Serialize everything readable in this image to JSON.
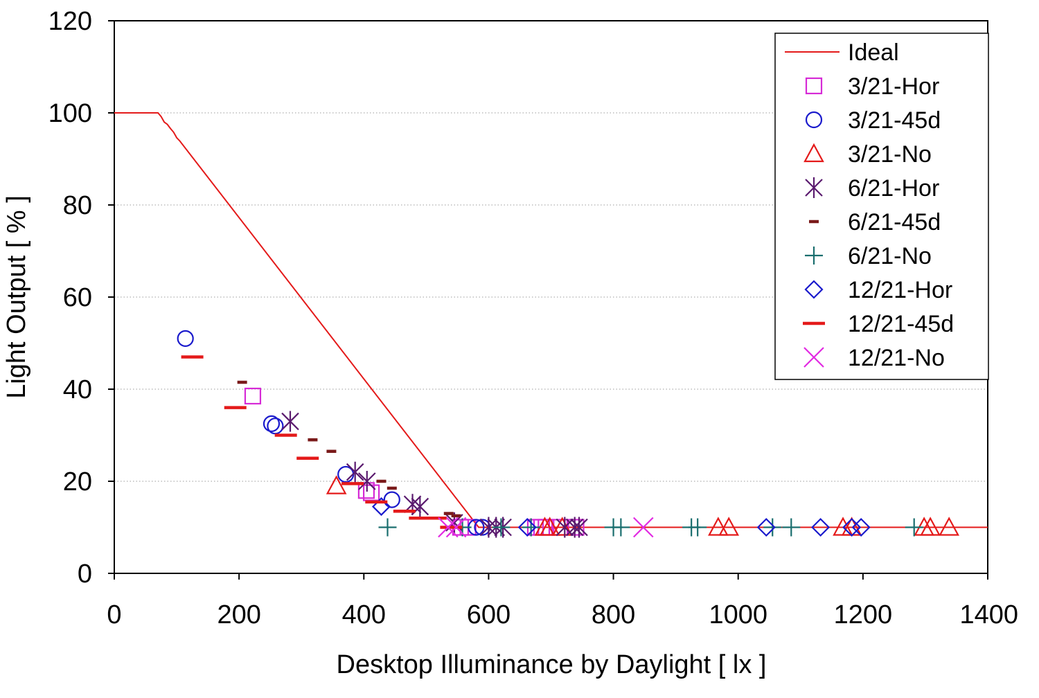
{
  "chart_data": {
    "type": "scatter",
    "title": "",
    "xlabel": "Desktop Illuminance by Daylight [ lx ]",
    "ylabel": "Light Output [ % ]",
    "xlim": [
      0,
      1400
    ],
    "ylim": [
      0,
      120
    ],
    "xticks": [
      "0",
      "200",
      "400",
      "600",
      "800",
      "1000",
      "1200",
      "1400"
    ],
    "yticks": [
      "0",
      "20",
      "40",
      "60",
      "80",
      "100",
      "120"
    ],
    "grid": "horizontal-dotted",
    "legend_position": "top-right",
    "series": [
      {
        "name": "Ideal",
        "marker": "line",
        "color": "#e41a1a",
        "points": [
          [
            0,
            100
          ],
          [
            70,
            100
          ],
          [
            75,
            99.2
          ],
          [
            80,
            98
          ],
          [
            85,
            97.5
          ],
          [
            90,
            96.6
          ],
          [
            95,
            95.8
          ],
          [
            100,
            94.6
          ],
          [
            105,
            93.9
          ],
          [
            584,
            10
          ],
          [
            1400,
            10
          ]
        ]
      },
      {
        "name": "3/21-Hor",
        "marker": "square",
        "color": "#d62ad6",
        "points": [
          [
            222,
            38.5
          ],
          [
            404,
            18
          ],
          [
            412,
            17.5
          ],
          [
            555,
            10
          ],
          [
            567,
            10
          ],
          [
            675,
            10
          ],
          [
            685,
            10
          ],
          [
            692,
            10
          ],
          [
            714,
            10
          ],
          [
            740,
            10
          ]
        ]
      },
      {
        "name": "3/21-45d",
        "marker": "circle",
        "color": "#1a1acc",
        "points": [
          [
            114,
            51
          ],
          [
            252,
            32.5
          ],
          [
            258,
            32
          ],
          [
            371,
            21.5
          ],
          [
            445,
            16
          ],
          [
            580,
            10
          ],
          [
            590,
            10
          ]
        ]
      },
      {
        "name": "3/21-No",
        "marker": "triangle",
        "color": "#e41a1a",
        "points": [
          [
            356,
            19
          ],
          [
            690,
            10
          ],
          [
            698,
            10
          ],
          [
            718,
            10
          ],
          [
            968,
            10
          ],
          [
            985,
            10
          ],
          [
            1168,
            10
          ],
          [
            1182,
            10
          ],
          [
            1298,
            10
          ],
          [
            1308,
            10
          ],
          [
            1338,
            10
          ]
        ]
      },
      {
        "name": "6/21-Hor",
        "marker": "asterisk",
        "color": "#5a1a6e",
        "points": [
          [
            282,
            33
          ],
          [
            386,
            22
          ],
          [
            405,
            20
          ],
          [
            478,
            15
          ],
          [
            490,
            14.5
          ],
          [
            545,
            11
          ],
          [
            600,
            10
          ],
          [
            612,
            10
          ],
          [
            623,
            10
          ],
          [
            722,
            10
          ],
          [
            738,
            10
          ],
          [
            745,
            10
          ]
        ]
      },
      {
        "name": "6/21-45d",
        "marker": "dash-short",
        "color": "#7a1a1a",
        "points": [
          [
            205,
            41.5
          ],
          [
            318,
            29
          ],
          [
            348,
            26.5
          ],
          [
            428,
            20
          ],
          [
            445,
            18.5
          ],
          [
            536,
            13
          ],
          [
            548,
            12.5
          ]
        ]
      },
      {
        "name": "6/21-No",
        "marker": "plus",
        "color": "#1a6e6e",
        "points": [
          [
            438,
            10
          ],
          [
            558,
            10
          ],
          [
            620,
            10
          ],
          [
            668,
            10
          ],
          [
            800,
            10
          ],
          [
            812,
            10
          ],
          [
            925,
            10
          ],
          [
            935,
            10
          ],
          [
            1055,
            10
          ],
          [
            1085,
            10
          ],
          [
            1282,
            10
          ]
        ]
      },
      {
        "name": "12/21-Hor",
        "marker": "diamond",
        "color": "#1a1acc",
        "points": [
          [
            428,
            14.5
          ],
          [
            662,
            10
          ],
          [
            1045,
            10
          ],
          [
            1132,
            10
          ],
          [
            1182,
            10
          ],
          [
            1197,
            10
          ]
        ]
      },
      {
        "name": "12/21-45d",
        "marker": "dash-long",
        "color": "#e41a1a",
        "points": [
          [
            125,
            47
          ],
          [
            194,
            36
          ],
          [
            275,
            30
          ],
          [
            310,
            25
          ],
          [
            382,
            19.5
          ],
          [
            420,
            15.5
          ],
          [
            465,
            13.5
          ],
          [
            490,
            12
          ],
          [
            515,
            12
          ],
          [
            540,
            10
          ]
        ]
      },
      {
        "name": "12/21-No",
        "marker": "x",
        "color": "#e22ae2",
        "points": [
          [
            535,
            10
          ],
          [
            548,
            10
          ],
          [
            848,
            10
          ]
        ]
      }
    ]
  }
}
